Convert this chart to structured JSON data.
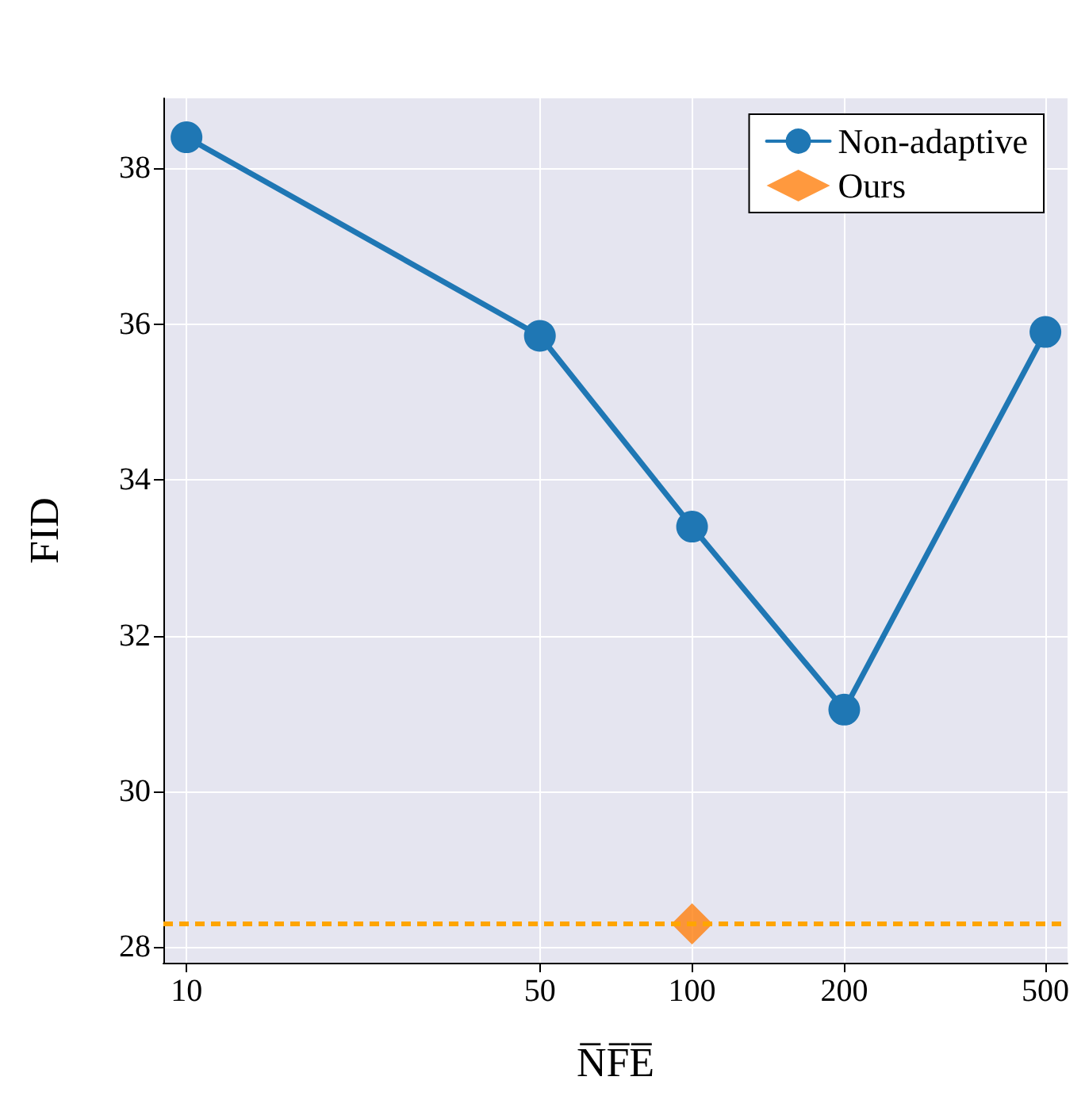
{
  "chart_data": {
    "type": "line",
    "xlabel": "N̅F̅E̅",
    "ylabel": "FID",
    "x": [
      10,
      50,
      100,
      200,
      500
    ],
    "series": [
      {
        "name": "Non-adaptive",
        "color": "#1f77b4",
        "values": [
          38.4,
          35.85,
          33.4,
          31.05,
          35.9
        ],
        "marker": "circle"
      },
      {
        "name": "Ours",
        "type": "scatter",
        "color": "#ff7f0e",
        "x": [
          100
        ],
        "values": [
          28.3
        ],
        "marker": "diamond"
      }
    ],
    "ref_lines": [
      {
        "axis": "y",
        "value": 28.3,
        "label": null,
        "color": "#ffa500",
        "line_style": "dashed"
      }
    ],
    "log": "x",
    "xlim": [
      9,
      553
    ],
    "xticks": [
      10,
      50,
      100,
      200,
      500
    ],
    "ylim": [
      27.8,
      38.9
    ],
    "yticks": [
      28,
      30,
      32,
      34,
      36,
      38
    ],
    "grid": true,
    "legend": "top right",
    "line_style": "solid"
  }
}
